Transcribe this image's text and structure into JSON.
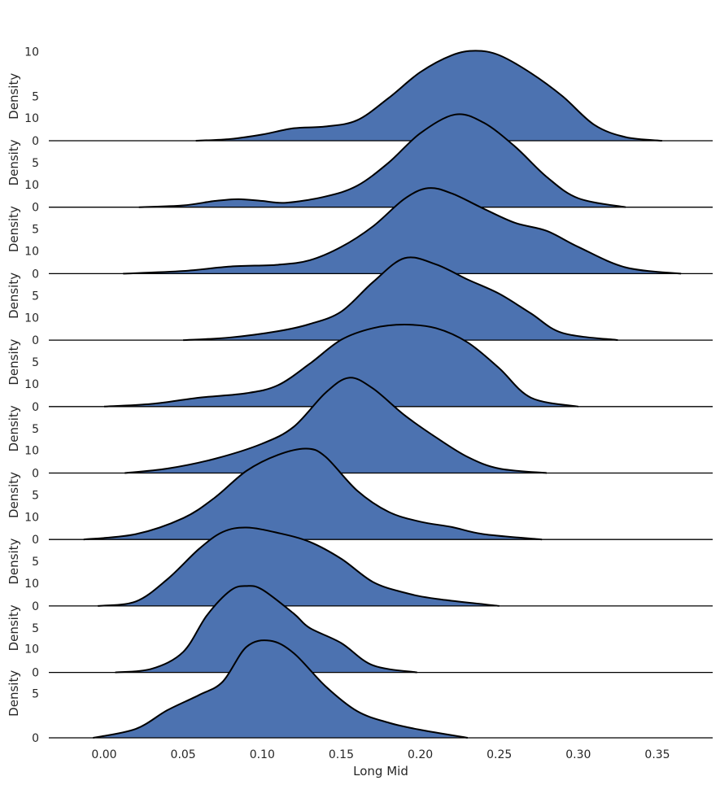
{
  "chart_data": {
    "type": "ridgeline-kde",
    "xlabel": "Long Mid",
    "ylabel": "Density",
    "xlim": [
      -0.035,
      0.385
    ],
    "xticks": [
      0.0,
      0.05,
      0.1,
      0.15,
      0.2,
      0.25,
      0.3,
      0.35
    ],
    "xtick_labels": [
      "0.00",
      "0.05",
      "0.10",
      "0.15",
      "0.20",
      "0.25",
      "0.30",
      "0.35"
    ],
    "yticks": [
      0,
      5,
      10
    ],
    "ylim": [
      0,
      12
    ],
    "fill_color": "#4c72b0",
    "line_color": "#000000",
    "series": [
      {
        "points": [
          [
            0.058,
            0.0
          ],
          [
            0.08,
            0.2
          ],
          [
            0.1,
            0.7
          ],
          [
            0.12,
            1.4
          ],
          [
            0.14,
            1.6
          ],
          [
            0.16,
            2.3
          ],
          [
            0.18,
            4.8
          ],
          [
            0.2,
            7.7
          ],
          [
            0.22,
            9.6
          ],
          [
            0.235,
            10.1
          ],
          [
            0.25,
            9.6
          ],
          [
            0.27,
            7.6
          ],
          [
            0.29,
            5.0
          ],
          [
            0.31,
            1.8
          ],
          [
            0.33,
            0.4
          ],
          [
            0.353,
            0.0
          ]
        ]
      },
      {
        "points": [
          [
            0.022,
            0.0
          ],
          [
            0.05,
            0.2
          ],
          [
            0.07,
            0.7
          ],
          [
            0.085,
            0.9
          ],
          [
            0.1,
            0.7
          ],
          [
            0.115,
            0.5
          ],
          [
            0.14,
            1.2
          ],
          [
            0.16,
            2.4
          ],
          [
            0.18,
            5.0
          ],
          [
            0.2,
            8.3
          ],
          [
            0.222,
            10.4
          ],
          [
            0.24,
            9.5
          ],
          [
            0.26,
            6.8
          ],
          [
            0.28,
            3.4
          ],
          [
            0.3,
            1.0
          ],
          [
            0.33,
            0.0
          ]
        ]
      },
      {
        "points": [
          [
            0.012,
            0.0
          ],
          [
            0.05,
            0.3
          ],
          [
            0.08,
            0.8
          ],
          [
            0.11,
            1.0
          ],
          [
            0.13,
            1.5
          ],
          [
            0.15,
            3.0
          ],
          [
            0.17,
            5.3
          ],
          [
            0.19,
            8.4
          ],
          [
            0.205,
            9.6
          ],
          [
            0.22,
            9.0
          ],
          [
            0.24,
            7.3
          ],
          [
            0.26,
            5.7
          ],
          [
            0.28,
            4.8
          ],
          [
            0.3,
            3.0
          ],
          [
            0.33,
            0.7
          ],
          [
            0.365,
            0.0
          ]
        ]
      },
      {
        "points": [
          [
            0.05,
            0.0
          ],
          [
            0.08,
            0.3
          ],
          [
            0.11,
            1.0
          ],
          [
            0.13,
            1.8
          ],
          [
            0.15,
            3.2
          ],
          [
            0.17,
            6.5
          ],
          [
            0.19,
            9.2
          ],
          [
            0.21,
            8.5
          ],
          [
            0.23,
            6.8
          ],
          [
            0.25,
            5.2
          ],
          [
            0.27,
            3.0
          ],
          [
            0.29,
            0.8
          ],
          [
            0.325,
            0.0
          ]
        ]
      },
      {
        "points": [
          [
            0.0,
            0.0
          ],
          [
            0.03,
            0.3
          ],
          [
            0.06,
            1.0
          ],
          [
            0.09,
            1.5
          ],
          [
            0.11,
            2.4
          ],
          [
            0.13,
            4.8
          ],
          [
            0.15,
            7.5
          ],
          [
            0.17,
            8.8
          ],
          [
            0.19,
            9.2
          ],
          [
            0.21,
            8.8
          ],
          [
            0.23,
            7.2
          ],
          [
            0.25,
            4.3
          ],
          [
            0.27,
            1.0
          ],
          [
            0.3,
            0.0
          ]
        ]
      },
      {
        "points": [
          [
            0.013,
            0.0
          ],
          [
            0.04,
            0.5
          ],
          [
            0.07,
            1.6
          ],
          [
            0.1,
            3.3
          ],
          [
            0.12,
            5.2
          ],
          [
            0.14,
            9.0
          ],
          [
            0.155,
            10.7
          ],
          [
            0.17,
            9.5
          ],
          [
            0.19,
            6.5
          ],
          [
            0.21,
            4.0
          ],
          [
            0.23,
            1.8
          ],
          [
            0.25,
            0.5
          ],
          [
            0.28,
            0.0
          ]
        ]
      },
      {
        "points": [
          [
            -0.013,
            0.0
          ],
          [
            0.02,
            0.6
          ],
          [
            0.05,
            2.4
          ],
          [
            0.07,
            4.7
          ],
          [
            0.09,
            7.7
          ],
          [
            0.11,
            9.5
          ],
          [
            0.128,
            10.2
          ],
          [
            0.14,
            9.3
          ],
          [
            0.16,
            5.5
          ],
          [
            0.18,
            3.1
          ],
          [
            0.2,
            2.0
          ],
          [
            0.22,
            1.4
          ],
          [
            0.24,
            0.6
          ],
          [
            0.277,
            0.0
          ]
        ]
      },
      {
        "points": [
          [
            -0.004,
            0.0
          ],
          [
            0.02,
            0.5
          ],
          [
            0.04,
            3.0
          ],
          [
            0.06,
            6.4
          ],
          [
            0.075,
            8.3
          ],
          [
            0.09,
            8.8
          ],
          [
            0.11,
            8.2
          ],
          [
            0.13,
            7.2
          ],
          [
            0.15,
            5.3
          ],
          [
            0.17,
            2.7
          ],
          [
            0.19,
            1.5
          ],
          [
            0.21,
            0.8
          ],
          [
            0.25,
            0.0
          ]
        ]
      },
      {
        "points": [
          [
            0.007,
            0.0
          ],
          [
            0.03,
            0.4
          ],
          [
            0.05,
            2.3
          ],
          [
            0.065,
            6.4
          ],
          [
            0.08,
            9.2
          ],
          [
            0.09,
            9.7
          ],
          [
            0.1,
            9.3
          ],
          [
            0.12,
            6.6
          ],
          [
            0.13,
            5.0
          ],
          [
            0.15,
            3.3
          ],
          [
            0.17,
            0.8
          ],
          [
            0.198,
            0.0
          ]
        ]
      },
      {
        "points": [
          [
            -0.007,
            0.0
          ],
          [
            0.02,
            1.0
          ],
          [
            0.04,
            3.1
          ],
          [
            0.06,
            4.8
          ],
          [
            0.075,
            6.3
          ],
          [
            0.09,
            10.2
          ],
          [
            0.105,
            10.9
          ],
          [
            0.12,
            9.5
          ],
          [
            0.14,
            5.8
          ],
          [
            0.16,
            3.0
          ],
          [
            0.18,
            1.7
          ],
          [
            0.2,
            0.9
          ],
          [
            0.23,
            0.0
          ]
        ]
      }
    ]
  }
}
